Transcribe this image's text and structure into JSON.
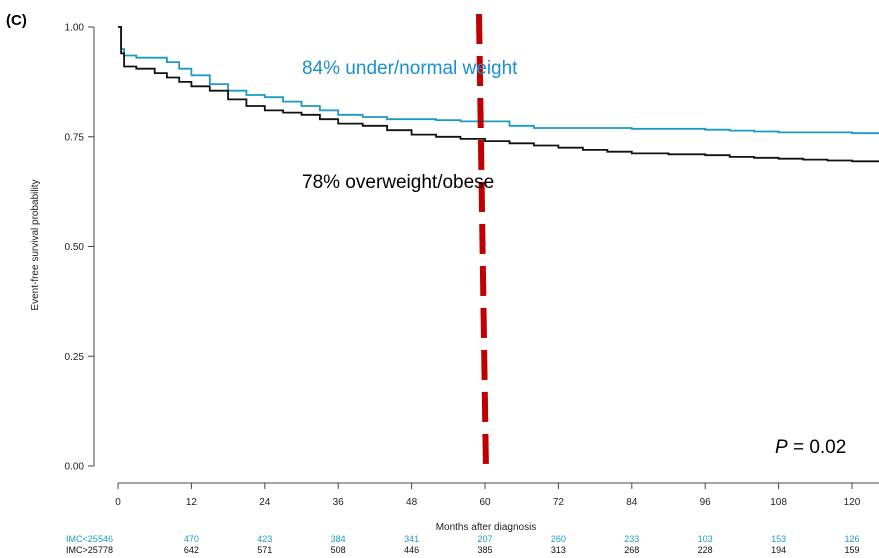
{
  "chart_data": {
    "type": "line",
    "panel_label": "(C)",
    "xlabel": "Months after diagnosis",
    "ylabel": "Event-free survival probability",
    "xlim": [
      0,
      126
    ],
    "ylim": [
      0,
      1
    ],
    "x_ticks": [
      0,
      12,
      24,
      36,
      48,
      60,
      72,
      84,
      96,
      108,
      120
    ],
    "y_ticks": [
      "0.00",
      "0.25",
      "0.50",
      "0.75",
      "1.00"
    ],
    "grid": false,
    "colors": {
      "under": "#1a9bc4",
      "over": "#111111",
      "cutoff": "#c00000"
    },
    "series": [
      {
        "name": "IMC<25",
        "x": [
          0,
          0.5,
          1,
          3,
          6,
          8,
          10,
          12,
          15,
          18,
          21,
          24,
          27,
          30,
          33,
          36,
          40,
          44,
          48,
          52,
          56,
          60,
          64,
          68,
          72,
          84,
          96,
          100,
          104,
          108,
          112,
          120,
          126
        ],
        "y": [
          1.0,
          0.95,
          0.935,
          0.93,
          0.93,
          0.92,
          0.905,
          0.89,
          0.87,
          0.855,
          0.845,
          0.84,
          0.83,
          0.82,
          0.81,
          0.8,
          0.795,
          0.79,
          0.79,
          0.788,
          0.785,
          0.785,
          0.775,
          0.77,
          0.77,
          0.768,
          0.766,
          0.764,
          0.762,
          0.76,
          0.76,
          0.758,
          0.758
        ]
      },
      {
        "name": "IMC>25",
        "x": [
          0,
          0.5,
          1,
          3,
          6,
          8,
          10,
          12,
          15,
          18,
          21,
          24,
          27,
          30,
          33,
          36,
          40,
          44,
          48,
          52,
          56,
          60,
          64,
          68,
          72,
          76,
          80,
          84,
          90,
          96,
          100,
          104,
          108,
          112,
          116,
          120,
          126
        ],
        "y": [
          1.0,
          0.94,
          0.91,
          0.905,
          0.895,
          0.885,
          0.875,
          0.865,
          0.855,
          0.835,
          0.82,
          0.81,
          0.805,
          0.8,
          0.79,
          0.78,
          0.775,
          0.765,
          0.755,
          0.75,
          0.745,
          0.74,
          0.735,
          0.73,
          0.725,
          0.72,
          0.716,
          0.712,
          0.71,
          0.708,
          0.704,
          0.702,
          0.7,
          0.698,
          0.696,
          0.694,
          0.693
        ]
      }
    ],
    "cutoff_x": 60,
    "annotations": {
      "under": "84% under/normal weight",
      "over": "78% overweight/obese",
      "p_label": "P",
      "p_value": " = 0.02"
    },
    "risk_table": {
      "x": [
        0,
        12,
        24,
        36,
        48,
        60,
        72,
        84,
        96,
        108,
        120
      ],
      "rows": [
        {
          "label": "IMC<25",
          "values": [
            "546",
            "470",
            "423",
            "384",
            "341",
            "207",
            "260",
            "233",
            "103",
            "153",
            "126"
          ]
        },
        {
          "label": "IMC>25",
          "values": [
            "778",
            "642",
            "571",
            "508",
            "446",
            "385",
            "313",
            "268",
            "228",
            "194",
            "159"
          ]
        }
      ]
    }
  }
}
